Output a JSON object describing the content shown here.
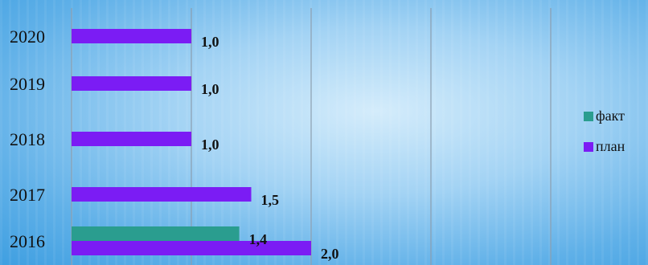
{
  "chart_data": {
    "type": "bar",
    "orientation": "horizontal",
    "categories": [
      "2016",
      "2017",
      "2018",
      "2019",
      "2020"
    ],
    "series": [
      {
        "name": "факт",
        "color": "#2a9d8f",
        "values": [
          1.4,
          null,
          null,
          null,
          null
        ],
        "labels": [
          "1,4",
          "",
          "",
          "",
          ""
        ]
      },
      {
        "name": "план",
        "color": "#7b1cf4",
        "values": [
          2.0,
          1.5,
          1.0,
          1.0,
          1.0
        ],
        "labels": [
          "2,0",
          "1,5",
          "1,0",
          "1,0",
          "1,0"
        ]
      }
    ],
    "xlim": [
      0,
      4.0
    ],
    "gridlines": [
      0,
      1,
      2,
      3,
      4
    ],
    "grid": true,
    "legend_position": "right"
  }
}
